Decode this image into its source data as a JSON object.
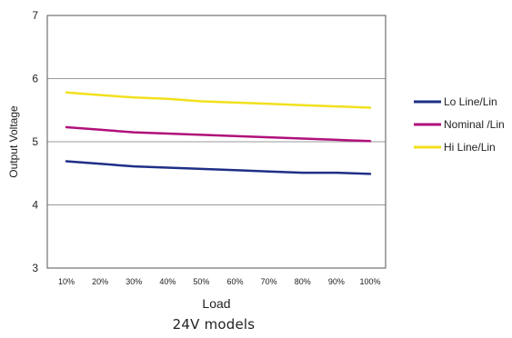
{
  "caption": "24V models",
  "chart_data": {
    "type": "line",
    "categories": [
      "10%",
      "20%",
      "30%",
      "40%",
      "50%",
      "60%",
      "70%",
      "80%",
      "90%",
      "100%"
    ],
    "xlabel": "Load",
    "ylabel": "Output Voltage",
    "ylim": [
      3,
      7
    ],
    "yticks": [
      3,
      4,
      5,
      6,
      7
    ],
    "grid": true,
    "legend_position": "right",
    "series": [
      {
        "name": "Lo Line/Lin",
        "color": "#1f2f86",
        "values": [
          4.69,
          4.65,
          4.61,
          4.59,
          4.57,
          4.55,
          4.53,
          4.51,
          4.51,
          4.49
        ]
      },
      {
        "name": "Nominal /Lin",
        "color": "#b0107a",
        "values": [
          5.23,
          5.19,
          5.15,
          5.13,
          5.11,
          5.09,
          5.07,
          5.05,
          5.03,
          5.01
        ]
      },
      {
        "name": "Hi Line/Lin",
        "color": "#f2e01c",
        "values": [
          5.78,
          5.74,
          5.7,
          5.68,
          5.64,
          5.62,
          5.6,
          5.58,
          5.56,
          5.54
        ]
      }
    ]
  }
}
